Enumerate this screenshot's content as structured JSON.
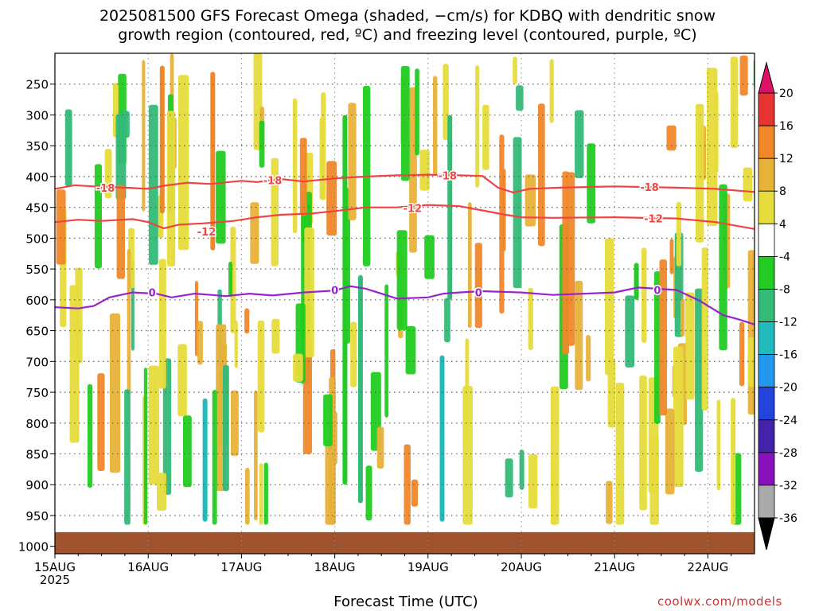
{
  "title_line1": "2025081500 GFS Forecast Omega (shaded, −cm/s) for KDBQ with dendritic snow",
  "title_line2": "growth region (contoured, red, ºC) and freezing level (contoured, purple, ºC)",
  "credit": "coolwx.com/models",
  "chart_data": {
    "type": "heatmap",
    "xlabel": "Forecast Time (UTC)",
    "ylabel": "",
    "x_ticks": [
      "15AUG\n2025",
      "16AUG",
      "17AUG",
      "18AUG",
      "19AUG",
      "20AUG",
      "21AUG",
      "22AUG"
    ],
    "x_tick_hours": [
      0,
      24,
      48,
      72,
      96,
      120,
      144,
      168
    ],
    "xlim_hours": [
      0,
      180
    ],
    "y_ticks": [
      250,
      300,
      350,
      400,
      450,
      500,
      550,
      600,
      650,
      700,
      750,
      800,
      850,
      900,
      950,
      1000
    ],
    "ylim_hPa": [
      200,
      1012
    ],
    "surface_hPa": 977,
    "y_axis": "pressure (hPa), reversed",
    "grid": true,
    "colorbar": {
      "labels": [
        "20",
        "16",
        "12",
        "8",
        "4",
        "-4",
        "-8",
        "-12",
        "-16",
        "-20",
        "-24",
        "-28",
        "-32",
        "-36"
      ],
      "colors": [
        "#dd1166",
        "#e83333",
        "#f0882a",
        "#e8b23a",
        "#e6dc3c",
        "#ffffff",
        "#22cc22",
        "#33bb77",
        "#22bbbb",
        "#2299ee",
        "#2244dd",
        "#4422aa",
        "#8811bb",
        "#aaaaaa",
        "#000000"
      ]
    },
    "contours": [
      {
        "label": "-18",
        "color": "#ee4444",
        "points": [
          [
            0,
            420
          ],
          [
            5,
            414
          ],
          [
            10,
            416
          ],
          [
            18,
            418
          ],
          [
            24,
            420
          ],
          [
            28,
            415
          ],
          [
            34,
            410
          ],
          [
            40,
            412
          ],
          [
            48,
            407
          ],
          [
            52,
            409
          ],
          [
            58,
            404
          ],
          [
            64,
            408
          ],
          [
            72,
            403
          ],
          [
            80,
            400
          ],
          [
            88,
            398
          ],
          [
            96,
            397
          ],
          [
            104,
            398
          ],
          [
            110,
            399
          ],
          [
            114,
            418
          ],
          [
            118,
            426
          ],
          [
            122,
            420
          ],
          [
            130,
            418
          ],
          [
            144,
            416
          ],
          [
            160,
            418
          ],
          [
            170,
            420
          ],
          [
            180,
            425
          ]
        ],
        "label_at": [
          [
            13,
            418
          ],
          [
            56,
            406
          ],
          [
            101,
            398
          ],
          [
            153,
            417
          ]
        ]
      },
      {
        "label": "-12",
        "color": "#ee4444",
        "points": [
          [
            0,
            474
          ],
          [
            6,
            470
          ],
          [
            12,
            472
          ],
          [
            20,
            469
          ],
          [
            24,
            474
          ],
          [
            28,
            484
          ],
          [
            32,
            478
          ],
          [
            38,
            476
          ],
          [
            46,
            472
          ],
          [
            52,
            466
          ],
          [
            58,
            462
          ],
          [
            66,
            460
          ],
          [
            72,
            456
          ],
          [
            80,
            450
          ],
          [
            88,
            450
          ],
          [
            96,
            446
          ],
          [
            104,
            448
          ],
          [
            110,
            455
          ],
          [
            116,
            462
          ],
          [
            120,
            466
          ],
          [
            128,
            467
          ],
          [
            144,
            466
          ],
          [
            160,
            468
          ],
          [
            170,
            474
          ],
          [
            180,
            485
          ]
        ],
        "label_at": [
          [
            39,
            489
          ],
          [
            92,
            451
          ],
          [
            154,
            468
          ]
        ]
      },
      {
        "label": "0",
        "color": "#9922cc",
        "points": [
          [
            0,
            612
          ],
          [
            6,
            614
          ],
          [
            10,
            610
          ],
          [
            14,
            596
          ],
          [
            20,
            588
          ],
          [
            26,
            590
          ],
          [
            30,
            596
          ],
          [
            36,
            590
          ],
          [
            44,
            594
          ],
          [
            50,
            590
          ],
          [
            56,
            593
          ],
          [
            64,
            588
          ],
          [
            72,
            585
          ],
          [
            76,
            578
          ],
          [
            80,
            582
          ],
          [
            84,
            590
          ],
          [
            88,
            598
          ],
          [
            96,
            596
          ],
          [
            100,
            590
          ],
          [
            104,
            588
          ],
          [
            110,
            586
          ],
          [
            120,
            588
          ],
          [
            128,
            592
          ],
          [
            144,
            588
          ],
          [
            150,
            580
          ],
          [
            160,
            584
          ],
          [
            166,
            602
          ],
          [
            172,
            625
          ],
          [
            176,
            632
          ],
          [
            180,
            640
          ]
        ],
        "label_at": [
          [
            25,
            588
          ],
          [
            72,
            584
          ],
          [
            109,
            588
          ],
          [
            155,
            584
          ]
        ]
      }
    ]
  }
}
